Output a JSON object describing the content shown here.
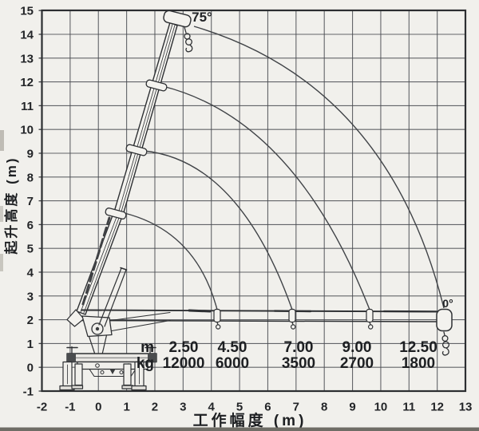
{
  "page": {
    "background": "#f1f0ec",
    "ink": "#2e3033",
    "grid_color": "#4a4c52"
  },
  "chart_data": {
    "type": "line",
    "title": "",
    "xlabel": "工作幅度 (m)",
    "ylabel": "起升高度 (m)",
    "xlim": [
      -2,
      13
    ],
    "ylim": [
      -1,
      15
    ],
    "grid": true,
    "x_ticks": [
      "-2",
      "-1",
      "0",
      "1",
      "2",
      "3",
      "4",
      "5",
      "6",
      "7",
      "8",
      "9",
      "10",
      "11",
      "12",
      "13"
    ],
    "y_ticks": [
      "-1",
      "0",
      "1",
      "2",
      "3",
      "4",
      "5",
      "6",
      "7",
      "8",
      "9",
      "10",
      "11",
      "12",
      "13",
      "14",
      "15"
    ],
    "angle_labels": {
      "max": "75°",
      "min": "0°"
    },
    "load_table": {
      "row_labels": [
        "m",
        "kg"
      ],
      "columns": [
        {
          "m": "2.50",
          "kg": "12000"
        },
        {
          "m": "4.50",
          "kg": "6000"
        },
        {
          "m": "7.00",
          "kg": "3500"
        },
        {
          "m": "9.00",
          "kg": "2700"
        },
        {
          "m": "12.50",
          "kg": "1800"
        }
      ]
    },
    "series": [
      {
        "name": "boom-tip-arc",
        "radius_m": 4.3,
        "sweep_deg": [
          0,
          75
        ]
      },
      {
        "name": "boom-tip-arc",
        "radius_m": 7.0,
        "sweep_deg": [
          0,
          75
        ]
      },
      {
        "name": "boom-tip-arc",
        "radius_m": 9.6,
        "sweep_deg": [
          0,
          75
        ]
      },
      {
        "name": "boom-tip-arc",
        "radius_m": 12.5,
        "sweep_deg": [
          0,
          75
        ]
      }
    ]
  }
}
